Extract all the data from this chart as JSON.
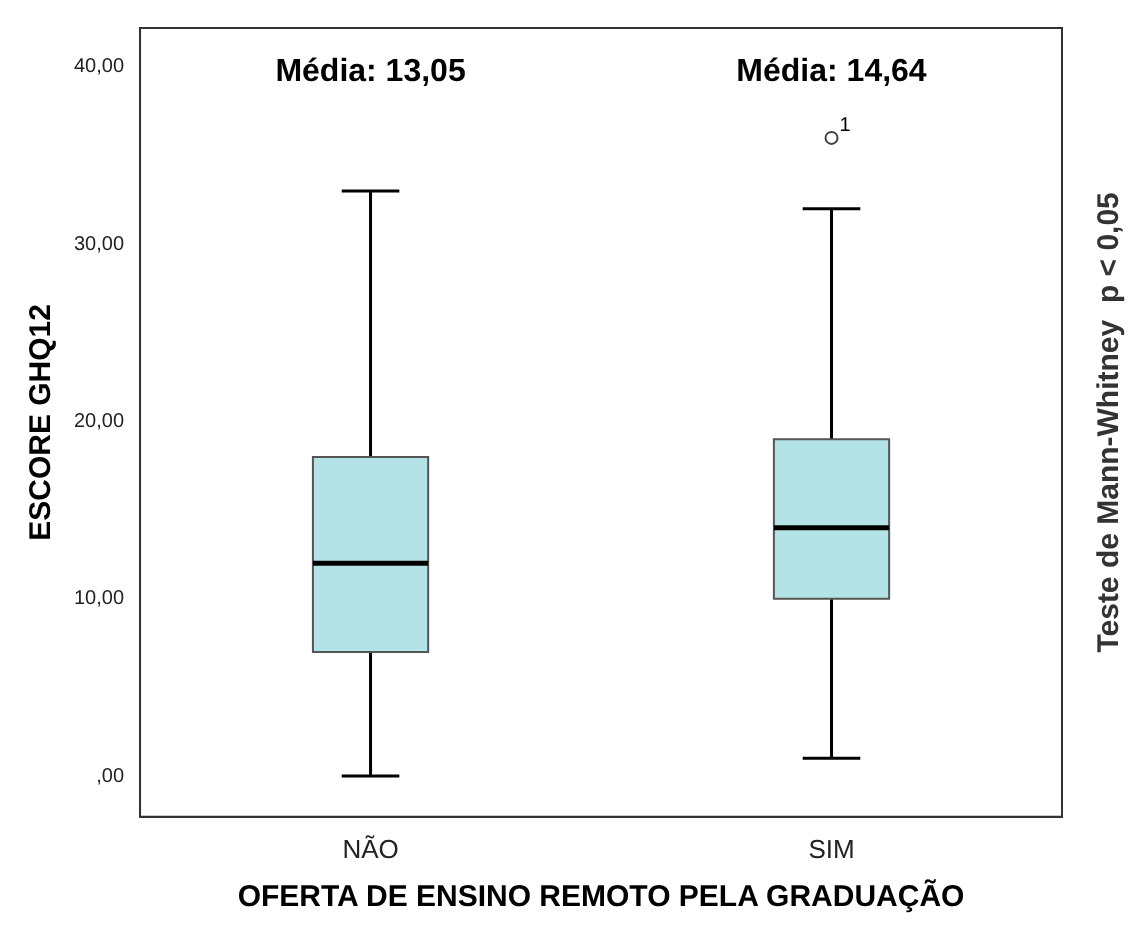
{
  "chart_data": {
    "type": "box",
    "xlabel": "OFERTA DE ENSINO REMOTO PELA GRADUAÇÃO",
    "ylabel": "ESCORE GHQ12",
    "categories": [
      "NÃO",
      "SIM"
    ],
    "series": [
      {
        "color": "#b3e3e6",
        "boxes": [
          {
            "low": 0,
            "q1": 7,
            "median": 12,
            "q3": 18,
            "high": 33
          },
          {
            "low": 1,
            "q1": 10,
            "median": 14,
            "q3": 19,
            "high": 32,
            "outliers": [
              36
            ]
          }
        ]
      }
    ],
    "ylim": [
      -2.3,
      42.2
    ],
    "yticks": [
      {
        "value": 0,
        "label": ",00"
      },
      {
        "value": 10,
        "label": "10,00"
      },
      {
        "value": 20,
        "label": "20,00"
      },
      {
        "value": 30,
        "label": "30,00"
      },
      {
        "value": 40,
        "label": "40,00"
      }
    ],
    "grid": false,
    "legend": false,
    "annotations": [
      "Média: 13,05",
      "Média: 14,64",
      "1",
      "Teste de Mann-Whitney  p < 0,05"
    ]
  }
}
